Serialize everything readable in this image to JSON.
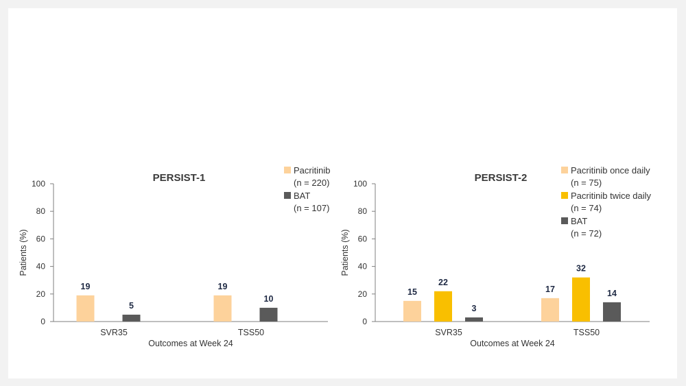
{
  "chart_data": [
    {
      "type": "bar",
      "title": "PERSIST-1",
      "xlabel": "Outcomes at Week 24",
      "ylabel": "Patients (%)",
      "ylim": [
        0,
        100
      ],
      "yticks": [
        0,
        20,
        40,
        60,
        80,
        100
      ],
      "categories": [
        "SVR35",
        "TSS50"
      ],
      "series": [
        {
          "name": "Pacritinib",
          "n_label": "(n = 220)",
          "color": "#fdd29b",
          "values": [
            19,
            19
          ]
        },
        {
          "name": "BAT",
          "n_label": "(n = 107)",
          "color": "#5a5a5a",
          "values": [
            5,
            10
          ]
        }
      ],
      "legend": "right"
    },
    {
      "type": "bar",
      "title": "PERSIST-2",
      "xlabel": "Outcomes at Week 24",
      "ylabel": "Patients (%)",
      "ylim": [
        0,
        100
      ],
      "yticks": [
        0,
        20,
        40,
        60,
        80,
        100
      ],
      "categories": [
        "SVR35",
        "TSS50"
      ],
      "series": [
        {
          "name": "Pacritinib once daily",
          "n_label": "(n = 75)",
          "color": "#fdd29b",
          "values": [
            15,
            17
          ]
        },
        {
          "name": "Pacritinib twice daily",
          "n_label": "(n = 74)",
          "color": "#f9bf00",
          "values": [
            22,
            32
          ]
        },
        {
          "name": "BAT",
          "n_label": "(n = 72)",
          "color": "#5a5a5a",
          "values": [
            3,
            14
          ]
        }
      ],
      "legend": "top-right"
    }
  ]
}
